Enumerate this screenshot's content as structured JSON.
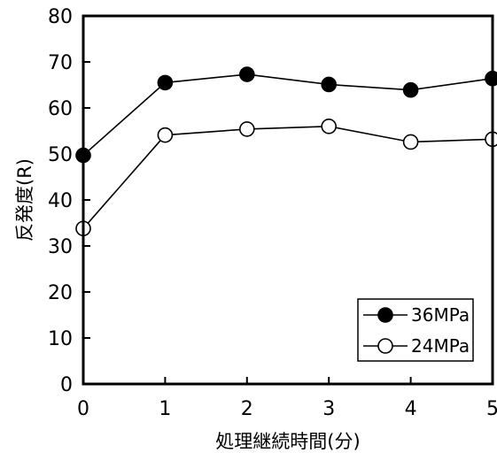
{
  "chart_data": {
    "type": "line",
    "title": "",
    "xlabel": "処理継続時間(分)",
    "ylabel": "反発度(R)",
    "x": [
      0,
      1,
      2,
      3,
      4,
      5
    ],
    "xlim": [
      0,
      5
    ],
    "ylim": [
      0,
      80
    ],
    "xticks": [
      "0",
      "1",
      "2",
      "3",
      "4",
      "5"
    ],
    "yticks": [
      "0",
      "10",
      "20",
      "30",
      "40",
      "50",
      "60",
      "70",
      "80"
    ],
    "grid": false,
    "legend_position": "bottom-right",
    "series": [
      {
        "name": "36MPa",
        "marker": "filled-circle",
        "color": "#000000",
        "values": [
          49.7,
          65.5,
          67.3,
          65.1,
          63.9,
          66.4
        ]
      },
      {
        "name": "24MPa",
        "marker": "open-circle",
        "color": "#000000",
        "values": [
          33.8,
          54.1,
          55.4,
          56.0,
          52.6,
          53.2
        ]
      }
    ]
  }
}
